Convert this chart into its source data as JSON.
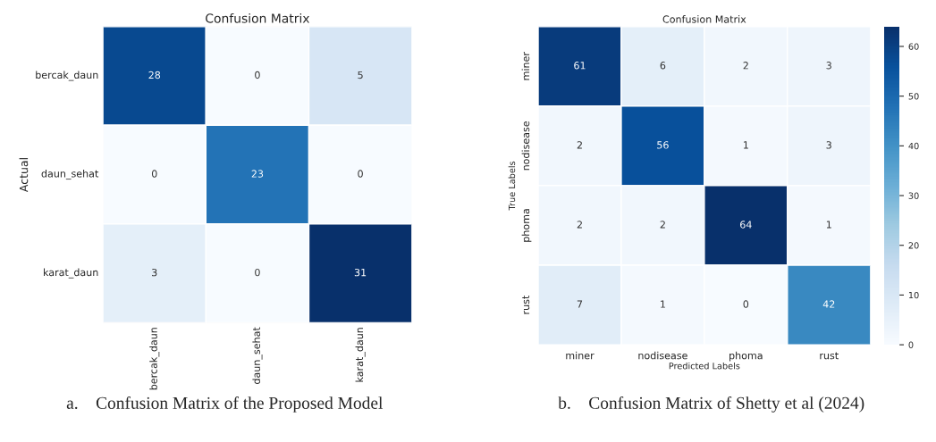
{
  "chart_data": [
    {
      "type": "heatmap",
      "title": "Confusion Matrix",
      "ylabel": "Actual",
      "categories": [
        "bercak_daun",
        "daun_sehat",
        "karat_daun"
      ],
      "y_categories": [
        "bercak_daun",
        "daun_sehat",
        "karat_daun"
      ],
      "cells": [
        [
          28,
          0,
          5
        ],
        [
          0,
          23,
          0
        ],
        [
          3,
          0,
          31
        ]
      ],
      "data_labels": true,
      "annotations": [
        "a.    Confusion Matrix of the Proposed Model"
      ]
    },
    {
      "type": "heatmap",
      "title": "Confusion Matrix",
      "xlabel": "Predicted Labels",
      "ylabel": "True Labels",
      "categories": [
        "miner",
        "nodisease",
        "phoma",
        "rust"
      ],
      "y_categories": [
        "miner",
        "nodisease",
        "phoma",
        "rust"
      ],
      "cells": [
        [
          61,
          6,
          2,
          3
        ],
        [
          2,
          56,
          1,
          3
        ],
        [
          2,
          2,
          64,
          1
        ],
        [
          7,
          1,
          0,
          42
        ]
      ],
      "clim": [
        0,
        64
      ],
      "cticks": [
        0,
        10,
        20,
        30,
        40,
        50,
        60
      ],
      "data_labels": true,
      "annotations": [
        "b.    Confusion Matrix of Shetty et al (2024)"
      ]
    }
  ]
}
